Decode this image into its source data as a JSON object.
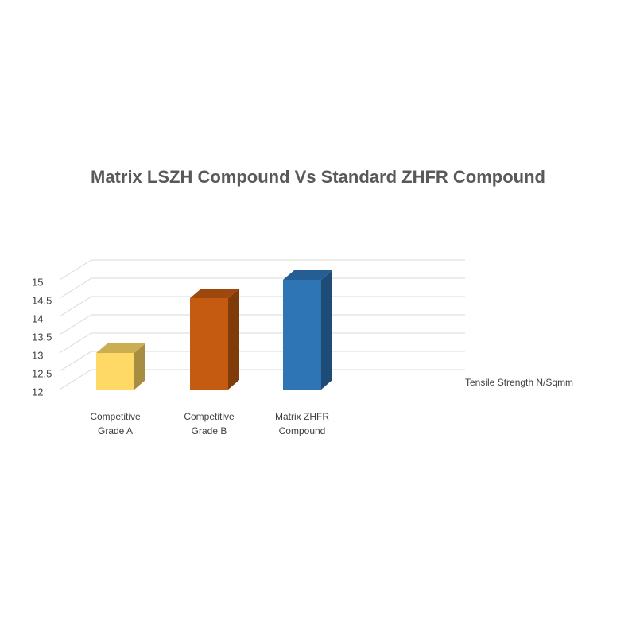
{
  "chart_data": {
    "type": "bar3d",
    "title": "Matrix LSZH Compound  Vs Standard ZHFR Compound",
    "categories": [
      "Competitive Grade A",
      "Competitive Grade B",
      "Matrix ZHFR Compound"
    ],
    "series": [
      {
        "name": "Tensile Strength N/Sqmm",
        "colors": [
          "#ffd966",
          "#c55a11",
          "#2e75b6"
        ],
        "values": [
          13,
          14.5,
          15
        ]
      }
    ],
    "ylim": [
      12,
      15
    ],
    "yticks": [
      12,
      12.5,
      13,
      13.5,
      14,
      14.5,
      15
    ],
    "grid": true
  }
}
